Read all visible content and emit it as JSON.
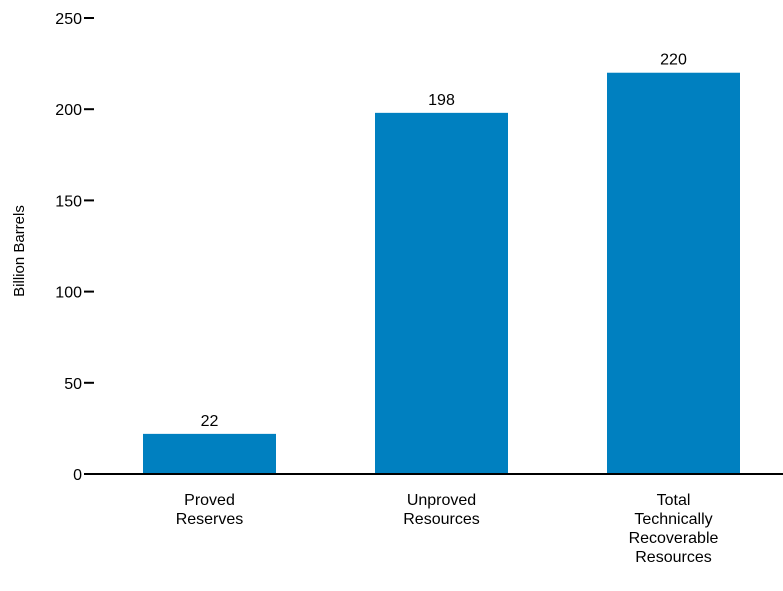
{
  "chart_data": {
    "type": "bar",
    "title": "",
    "xlabel": "",
    "ylabel": "Billion Barrels",
    "ylim": [
      0,
      250
    ],
    "yticks": [
      0,
      50,
      100,
      150,
      200,
      250
    ],
    "grid": false,
    "categories": [
      [
        "Proved",
        "Reserves"
      ],
      [
        "Unproved",
        "Resources"
      ],
      [
        "Total",
        "Technically",
        "Recoverable",
        "Resources"
      ]
    ],
    "values": [
      22,
      198,
      220
    ],
    "data_labels": [
      "22",
      "198",
      "220"
    ],
    "bar_color": "#0080c0",
    "axis_color": "#000000"
  }
}
